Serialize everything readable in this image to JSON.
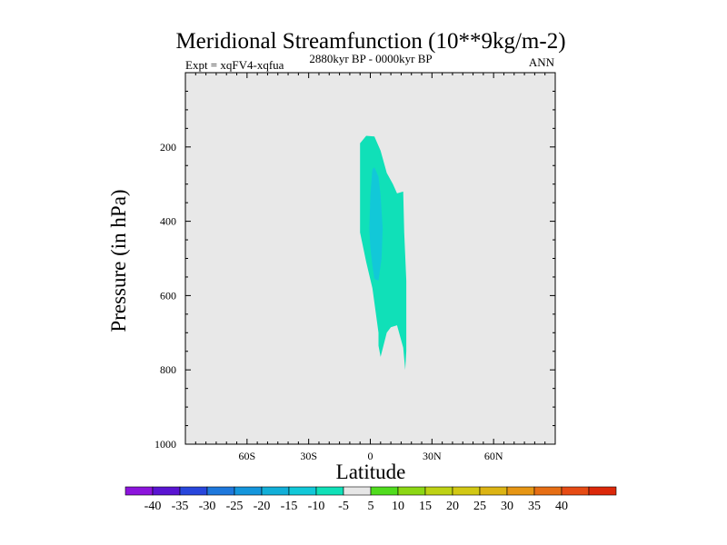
{
  "chart_data": {
    "type": "contour",
    "title": "Meridional Streamfunction (10**9kg/m-2)",
    "subtitle_left": "Expt = xqFV4-xqfua",
    "subtitle_center": "2880kyr BP - 0000kyr BP",
    "subtitle_right": "ANN",
    "xlabel": "Latitude",
    "ylabel": "Pressure (in hPa)",
    "xlim": [
      -90,
      90
    ],
    "ylim": [
      0,
      1000
    ],
    "x_ticks": [
      {
        "value": -60,
        "label": "60S"
      },
      {
        "value": -30,
        "label": "30S"
      },
      {
        "value": 0,
        "label": "0"
      },
      {
        "value": 30,
        "label": "30N"
      },
      {
        "value": 60,
        "label": "60N"
      }
    ],
    "y_ticks": [
      {
        "value": 200,
        "label": "200"
      },
      {
        "value": 400,
        "label": "400"
      },
      {
        "value": 600,
        "label": "600"
      },
      {
        "value": 800,
        "label": "800"
      },
      {
        "value": 1000,
        "label": "1000"
      }
    ],
    "background_color": "#e8e8e8",
    "contour_regions": [
      {
        "level": "-10 to -5",
        "color": "#10e0b8",
        "points": [
          [
            -5,
            190
          ],
          [
            -2,
            170
          ],
          [
            2,
            172
          ],
          [
            5,
            210
          ],
          [
            8,
            270
          ],
          [
            11,
            300
          ],
          [
            13,
            325
          ],
          [
            16,
            320
          ],
          [
            16.5,
            430
          ],
          [
            17.5,
            560
          ],
          [
            17.5,
            750
          ],
          [
            17,
            800
          ],
          [
            16,
            740
          ],
          [
            13,
            680
          ],
          [
            10,
            685
          ],
          [
            8,
            700
          ],
          [
            5,
            765
          ],
          [
            4,
            735
          ],
          [
            4,
            700
          ],
          [
            1,
            580
          ],
          [
            -2,
            510
          ],
          [
            -5,
            430
          ]
        ]
      },
      {
        "level": "-15 to -10",
        "color": "#12c8d8",
        "points": [
          [
            1,
            260
          ],
          [
            2,
            255
          ],
          [
            4,
            280
          ],
          [
            5,
            330
          ],
          [
            6,
            420
          ],
          [
            5.5,
            500
          ],
          [
            4,
            560
          ],
          [
            2,
            555
          ],
          [
            1,
            520
          ],
          [
            0,
            470
          ],
          [
            -0.5,
            420
          ],
          [
            0,
            330
          ]
        ]
      }
    ],
    "colorbar": {
      "colors": [
        "#8c14dc",
        "#5a14d2",
        "#2846dc",
        "#1e78dc",
        "#1496dc",
        "#12afd8",
        "#12c8d8",
        "#10e0b8",
        "#e6e6e6",
        "#50dc1e",
        "#8cd714",
        "#bed214",
        "#d2c814",
        "#dcb414",
        "#e69614",
        "#e66e14",
        "#e64b14",
        "#dc280a"
      ],
      "labels": [
        "-40",
        "-35",
        "-30",
        "-25",
        "-20",
        "-15",
        "-10",
        "-5",
        "5",
        "10",
        "15",
        "20",
        "25",
        "30",
        "35",
        "40"
      ]
    }
  }
}
